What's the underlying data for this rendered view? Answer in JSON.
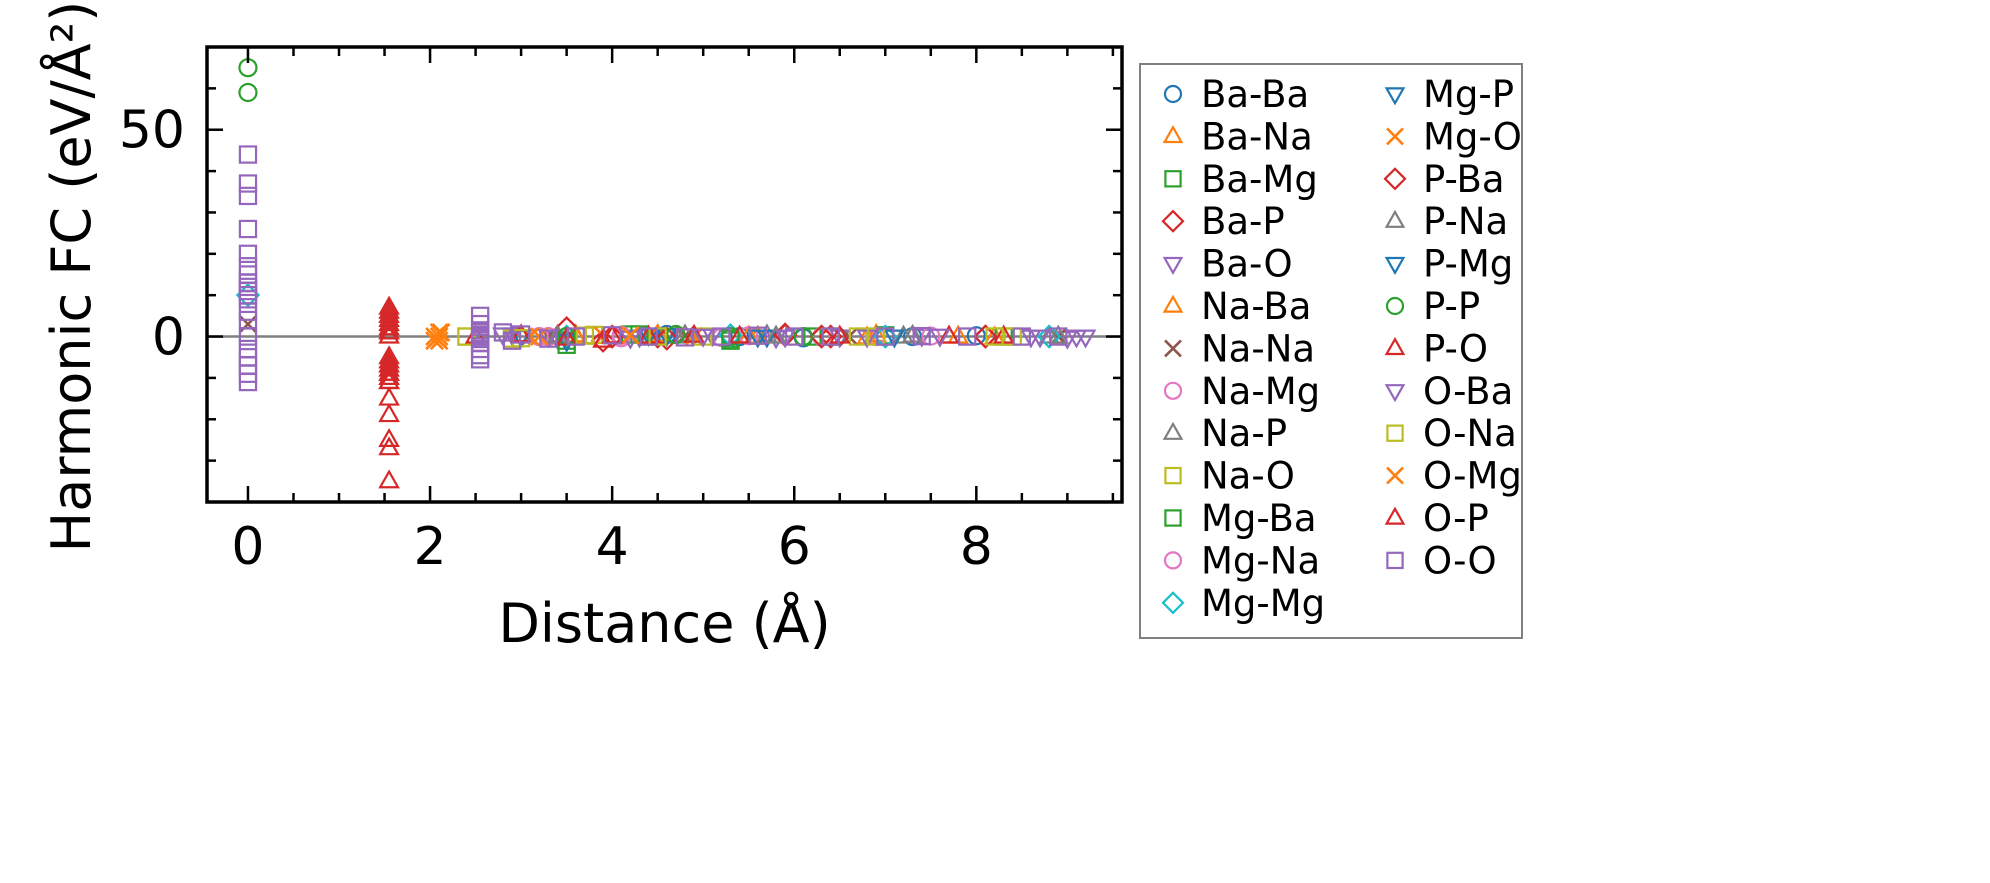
{
  "chart_data": {
    "type": "scatter",
    "xlabel": "Distance (Å)",
    "ylabel": "Harmonic FC (eV/Å²)",
    "xlim": [
      -0.45,
      9.6
    ],
    "ylim": [
      -40,
      70
    ],
    "xticks": [
      0,
      2,
      4,
      6,
      8
    ],
    "yticks": [
      0,
      50
    ],
    "grid": false,
    "zero_line": true,
    "legend": {
      "placement": "outside-right",
      "columns": 2
    },
    "series": [
      {
        "name": "Ba-Ba",
        "marker": "circle",
        "color": "#1f77b4",
        "x": [
          3.5,
          4.6,
          5.4,
          6.1,
          7.3,
          8.0
        ],
        "y": [
          0,
          0.5,
          0,
          -0.3,
          0,
          0.2
        ]
      },
      {
        "name": "Ba-Na",
        "marker": "triangle-up",
        "color": "#ff7f0e",
        "x": [
          3.6,
          4.4,
          5.5,
          6.9,
          7.8,
          8.2
        ],
        "y": [
          0.3,
          -0.5,
          0,
          0.4,
          0,
          -0.2
        ]
      },
      {
        "name": "Ba-Mg",
        "marker": "square",
        "color": "#2ca02c",
        "x": [
          3.5,
          4.2,
          5.3,
          6.2,
          7.0,
          8.3
        ],
        "y": [
          -2,
          0.5,
          -1,
          0,
          0.3,
          0
        ]
      },
      {
        "name": "Ba-P",
        "marker": "diamond",
        "color": "#d62728",
        "x": [
          3.5,
          3.9,
          4.5,
          5.9,
          6.4,
          8.1
        ],
        "y": [
          2,
          -1,
          0,
          0.5,
          0,
          0
        ]
      },
      {
        "name": "Ba-O",
        "marker": "triangle-down",
        "color": "#9467bd",
        "x": [
          2.9,
          3.4,
          4.3,
          5.1,
          5.8,
          6.5,
          7.4,
          8.6,
          9.0,
          9.2
        ],
        "y": [
          0.5,
          -0.4,
          0,
          0.3,
          -0.2,
          0,
          0.2,
          0,
          -0.3,
          0
        ]
      },
      {
        "name": "Na-Ba",
        "marker": "triangle-up",
        "color": "#ff7f0e",
        "x": [
          3.6,
          4.5,
          5.6,
          6.8,
          7.7
        ],
        "y": [
          0,
          0.4,
          0,
          -0.2,
          0
        ]
      },
      {
        "name": "Na-Na",
        "marker": "x",
        "color": "#8c564b",
        "x": [
          0,
          3.3,
          4.8,
          6.6,
          8.9
        ],
        "y": [
          3,
          0,
          0.2,
          0,
          0
        ]
      },
      {
        "name": "Na-Mg",
        "marker": "circle",
        "color": "#e377c2",
        "x": [
          3.3,
          4.1,
          5.2,
          6.3,
          7.5
        ],
        "y": [
          0,
          0.3,
          -0.2,
          0,
          0.1
        ]
      },
      {
        "name": "Na-P",
        "marker": "triangle-up",
        "color": "#7f7f7f",
        "x": [
          3.4,
          4.7,
          5.7,
          7.2,
          8.8
        ],
        "y": [
          0.2,
          0,
          0.3,
          0,
          0
        ]
      },
      {
        "name": "Na-O",
        "marker": "square",
        "color": "#bcbd22",
        "x": [
          2.4,
          2.9,
          3.8,
          5.0,
          6.7,
          8.4
        ],
        "y": [
          0,
          -0.5,
          0.4,
          0,
          0,
          0
        ]
      },
      {
        "name": "Mg-Ba",
        "marker": "square",
        "color": "#2ca02c",
        "x": [
          3.5,
          4.3,
          5.3,
          6.4
        ],
        "y": [
          -1,
          0.5,
          -0.5,
          0
        ]
      },
      {
        "name": "Mg-Na",
        "marker": "circle",
        "color": "#e377c2",
        "x": [
          3.2,
          4.1,
          5.5,
          6.9
        ],
        "y": [
          0,
          -0.3,
          0.2,
          0
        ]
      },
      {
        "name": "Mg-Mg",
        "marker": "diamond",
        "color": "#17becf",
        "x": [
          0,
          3.5,
          5.3,
          7.0,
          8.8
        ],
        "y": [
          10,
          0,
          0.3,
          0,
          0
        ]
      },
      {
        "name": "Mg-P",
        "marker": "triangle-down",
        "color": "#1f77b4",
        "x": [
          3.0,
          3.5,
          4.6,
          5.7,
          7.1
        ],
        "y": [
          0,
          -1,
          0.3,
          0,
          0
        ]
      },
      {
        "name": "Mg-O",
        "marker": "x",
        "color": "#ff7f0e",
        "x": [
          2.05,
          2.1,
          2.12,
          3.1,
          3.9,
          4.9
        ],
        "y": [
          0,
          -1,
          1,
          0,
          0.2,
          0
        ]
      },
      {
        "name": "P-Ba",
        "marker": "diamond",
        "color": "#d62728",
        "x": [
          3.5,
          4.0,
          4.6,
          5.9,
          6.3,
          8.1
        ],
        "y": [
          2,
          0,
          -0.5,
          0.3,
          0,
          0
        ]
      },
      {
        "name": "P-Na",
        "marker": "triangle-up",
        "color": "#7f7f7f",
        "x": [
          3.4,
          4.8,
          5.8,
          7.3,
          8.9
        ],
        "y": [
          0,
          0.3,
          0,
          0.2,
          0
        ]
      },
      {
        "name": "P-Mg",
        "marker": "triangle-down",
        "color": "#1f77b4",
        "x": [
          3.0,
          3.5,
          4.4,
          5.6
        ],
        "y": [
          0,
          -1,
          0.4,
          0
        ]
      },
      {
        "name": "P-P",
        "marker": "circle",
        "color": "#2ca02c",
        "x": [
          0,
          0,
          3.5,
          4.7,
          5.3,
          6.1
        ],
        "y": [
          65,
          59,
          0,
          0.5,
          0,
          0
        ]
      },
      {
        "name": "P-O",
        "marker": "triangle-up",
        "color": "#d62728",
        "x": [
          1.55,
          1.55,
          1.55,
          1.55,
          1.55,
          1.55,
          1.55,
          1.55,
          1.55,
          1.55,
          1.55,
          1.55,
          1.55,
          1.55,
          1.55,
          2.5,
          3.0,
          3.5,
          3.9,
          4.4,
          4.9,
          6.5,
          7.7,
          8.3
        ],
        "y": [
          6,
          4,
          2,
          0,
          -6,
          -7,
          -8,
          -9,
          -10,
          -11,
          -15,
          -19,
          -25,
          -27,
          -35,
          0,
          0.3,
          -0.5,
          -1,
          0,
          0.2,
          0,
          0,
          0
        ]
      },
      {
        "name": "O-Ba",
        "marker": "triangle-down",
        "color": "#9467bd",
        "x": [
          2.8,
          3.3,
          4.2,
          5.0,
          5.9,
          6.8,
          7.6,
          8.7,
          9.1
        ],
        "y": [
          0.5,
          0,
          -0.3,
          0.2,
          0,
          0,
          0.2,
          0,
          0
        ]
      },
      {
        "name": "O-Na",
        "marker": "square",
        "color": "#bcbd22",
        "x": [
          2.4,
          3.0,
          3.7,
          4.5,
          6.9,
          8.2
        ],
        "y": [
          0,
          -0.4,
          0.2,
          0,
          0,
          0
        ]
      },
      {
        "name": "O-Mg",
        "marker": "x",
        "color": "#ff7f0e",
        "x": [
          2.05,
          2.1,
          2.1,
          3.2,
          4.2
        ],
        "y": [
          -1,
          0,
          1,
          0,
          0.3
        ]
      },
      {
        "name": "O-P",
        "marker": "triangle-up",
        "color": "#d62728",
        "x": [
          1.55,
          1.55,
          1.55,
          1.55,
          1.55,
          1.55,
          1.55,
          1.55,
          4.0,
          5.4
        ],
        "y": [
          7,
          5,
          3,
          1,
          -5,
          -7,
          -9,
          -11,
          0,
          0
        ]
      },
      {
        "name": "O-O",
        "marker": "square",
        "color": "#9467bd",
        "x": [
          0,
          0,
          0,
          0,
          0,
          0,
          0,
          0,
          0,
          0,
          0,
          0,
          0,
          0,
          0,
          0,
          0,
          0,
          0,
          0,
          2.55,
          2.55,
          2.55,
          2.55,
          2.55,
          2.55,
          2.55,
          2.55,
          2.55,
          2.55,
          2.8,
          2.9,
          3.0,
          3.3,
          3.6,
          4.0,
          4.4,
          4.8,
          5.2,
          5.6,
          6.0,
          6.4,
          7.0,
          7.4,
          7.9,
          8.5,
          8.9
        ],
        "y": [
          44,
          37,
          34,
          26,
          20,
          17,
          15,
          13,
          12,
          11,
          10,
          9,
          6,
          4,
          0,
          -3,
          -5,
          -7,
          -9,
          -11,
          5,
          3,
          1.5,
          0.5,
          -0.5,
          -1.5,
          -3,
          -4.5,
          -5.5,
          0,
          1,
          -1,
          0.5,
          -0.5,
          0,
          0.3,
          0,
          -0.2,
          0,
          0.2,
          0,
          0,
          0,
          0.1,
          0,
          0,
          0
        ]
      }
    ]
  }
}
